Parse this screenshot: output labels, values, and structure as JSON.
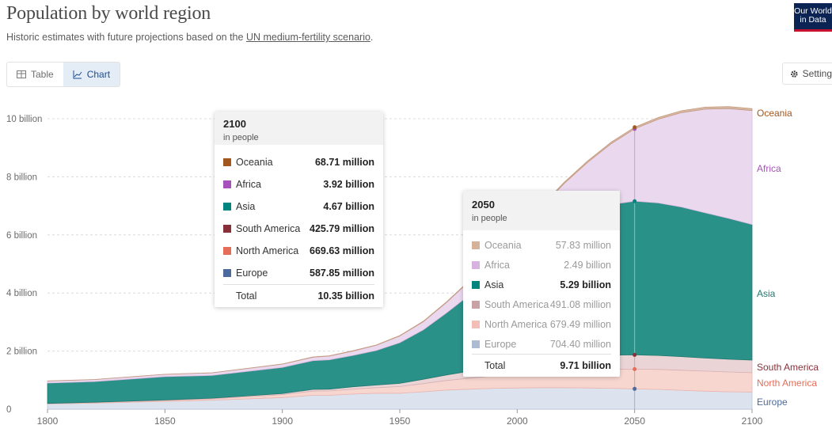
{
  "header": {
    "title": "Population by world region",
    "subtitle_pre": "Historic estimates with future projections based on the ",
    "subtitle_link": "UN medium-fertility scenario",
    "subtitle_post": ".",
    "logo_line1": "Our World",
    "logo_line2": "in Data"
  },
  "tabs": [
    {
      "label": "Table",
      "icon": "table-icon",
      "active": false
    },
    {
      "label": "Chart",
      "icon": "chart-icon",
      "active": true
    }
  ],
  "settings_label": "Settings",
  "colors": {
    "Oceania": "#a2571f",
    "Africa": "#a652ba",
    "Asia": "#00847e",
    "South America": "#883039",
    "North America": "#e56e5a",
    "Europe": "#4c6a9c"
  },
  "chart_data": {
    "type": "area",
    "stacked": true,
    "x": [
      1800,
      1820,
      1850,
      1870,
      1900,
      1913,
      1920,
      1930,
      1940,
      1950,
      1960,
      1970,
      1980,
      1990,
      2000,
      2010,
      2020,
      2030,
      2040,
      2050,
      2060,
      2070,
      2080,
      2090,
      2100
    ],
    "series": [
      {
        "name": "Europe",
        "values": [
          0.18,
          0.21,
          0.27,
          0.31,
          0.4,
          0.48,
          0.48,
          0.52,
          0.55,
          0.55,
          0.6,
          0.66,
          0.69,
          0.72,
          0.73,
          0.74,
          0.74,
          0.73,
          0.72,
          0.7,
          0.68,
          0.65,
          0.62,
          0.6,
          0.59
        ]
      },
      {
        "name": "North America",
        "values": [
          0.01,
          0.02,
          0.03,
          0.05,
          0.1,
          0.14,
          0.15,
          0.17,
          0.19,
          0.23,
          0.28,
          0.33,
          0.38,
          0.43,
          0.49,
          0.55,
          0.6,
          0.64,
          0.66,
          0.68,
          0.69,
          0.69,
          0.69,
          0.68,
          0.67
        ]
      },
      {
        "name": "South America",
        "values": [
          0.01,
          0.01,
          0.02,
          0.02,
          0.04,
          0.06,
          0.06,
          0.08,
          0.09,
          0.11,
          0.15,
          0.19,
          0.24,
          0.3,
          0.35,
          0.39,
          0.43,
          0.46,
          0.48,
          0.49,
          0.48,
          0.47,
          0.45,
          0.44,
          0.43
        ]
      },
      {
        "name": "Asia",
        "values": [
          0.7,
          0.71,
          0.8,
          0.78,
          0.9,
          0.99,
          1.01,
          1.08,
          1.19,
          1.4,
          1.7,
          2.14,
          2.64,
          3.23,
          3.74,
          4.21,
          4.64,
          4.96,
          5.19,
          5.29,
          5.25,
          5.15,
          5.0,
          4.85,
          4.67
        ]
      },
      {
        "name": "Africa",
        "values": [
          0.07,
          0.07,
          0.08,
          0.09,
          0.11,
          0.12,
          0.13,
          0.15,
          0.18,
          0.23,
          0.28,
          0.36,
          0.48,
          0.63,
          0.81,
          1.04,
          1.36,
          1.71,
          2.09,
          2.49,
          2.88,
          3.25,
          3.57,
          3.78,
          3.92
        ]
      },
      {
        "name": "Oceania",
        "values": [
          0.002,
          0.002,
          0.002,
          0.003,
          0.006,
          0.008,
          0.009,
          0.01,
          0.011,
          0.013,
          0.016,
          0.02,
          0.023,
          0.027,
          0.031,
          0.037,
          0.043,
          0.048,
          0.053,
          0.058,
          0.062,
          0.065,
          0.067,
          0.068,
          0.069
        ]
      }
    ],
    "xlim": [
      1800,
      2100
    ],
    "ylim": [
      0,
      10
    ],
    "y_ticks": [
      {
        "value": 0,
        "label": "0"
      },
      {
        "value": 2,
        "label": "2 billion"
      },
      {
        "value": 4,
        "label": "4 billion"
      },
      {
        "value": 6,
        "label": "6 billion"
      },
      {
        "value": 8,
        "label": "8 billion"
      },
      {
        "value": 10,
        "label": "10 billion"
      }
    ],
    "x_ticks": [
      {
        "value": 1800,
        "label": "1800"
      },
      {
        "value": 1850,
        "label": "1850"
      },
      {
        "value": 1900,
        "label": "1900"
      },
      {
        "value": 1950,
        "label": "1950"
      },
      {
        "value": 2000,
        "label": "2000"
      },
      {
        "value": 2050,
        "label": "2050"
      },
      {
        "value": 2100,
        "label": "2100"
      }
    ],
    "hover_year": 2050,
    "grid": true,
    "legend_placement": "right, inline labels"
  },
  "tooltip_2100": {
    "year": "2100",
    "unit": "in people",
    "rows": [
      {
        "name": "Oceania",
        "value": "68.71 million"
      },
      {
        "name": "Africa",
        "value": "3.92 billion"
      },
      {
        "name": "Asia",
        "value": "4.67 billion"
      },
      {
        "name": "South America",
        "value": "425.79 million"
      },
      {
        "name": "North America",
        "value": "669.63 million"
      },
      {
        "name": "Europe",
        "value": "587.85 million"
      }
    ],
    "total_label": "Total",
    "total_value": "10.35 billion"
  },
  "tooltip_2050": {
    "year": "2050",
    "unit": "in people",
    "highlight": "Asia",
    "rows": [
      {
        "name": "Oceania",
        "value": "57.83 million"
      },
      {
        "name": "Africa",
        "value": "2.49 billion"
      },
      {
        "name": "Asia",
        "value": "5.29 billion"
      },
      {
        "name": "South America",
        "value": "491.08 million"
      },
      {
        "name": "North America",
        "value": "679.49 million"
      },
      {
        "name": "Europe",
        "value": "704.40 million"
      }
    ],
    "total_label": "Total",
    "total_value": "9.71 billion"
  }
}
